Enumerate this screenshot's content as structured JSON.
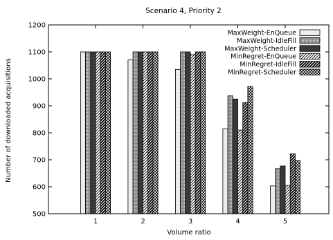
{
  "chart_data": {
    "type": "bar",
    "title": "Scenario 4, Priority 2",
    "xlabel": "Volume ratio",
    "ylabel": "Number of downloaded acquisitions",
    "categories": [
      "1",
      "2",
      "3",
      "4",
      "5"
    ],
    "ylim": [
      500,
      1200
    ],
    "yticks": [
      500,
      600,
      700,
      800,
      900,
      1000,
      1100,
      1200
    ],
    "grid": false,
    "legend_position": "top-right",
    "series": [
      {
        "name": "MaxWeight-EnQueue",
        "values": [
          1100,
          1070,
          1035,
          815,
          603
        ],
        "pattern": "light-gray"
      },
      {
        "name": "MaxWeight-IdleFill",
        "values": [
          1100,
          1100,
          1100,
          937,
          667
        ],
        "pattern": "dotted-gray"
      },
      {
        "name": "MaxWeight-Scheduler",
        "values": [
          1100,
          1100,
          1100,
          925,
          677
        ],
        "pattern": "dark-gray"
      },
      {
        "name": "MinRegret-EnQueue",
        "values": [
          1100,
          1100,
          1090,
          810,
          605
        ],
        "pattern": "hatch-fine"
      },
      {
        "name": "MinRegret-IdleFill",
        "values": [
          1100,
          1100,
          1100,
          912,
          722
        ],
        "pattern": "hatch-wide"
      },
      {
        "name": "MinRegret-Scheduler",
        "values": [
          1100,
          1100,
          1100,
          972,
          697
        ],
        "pattern": "crosshatch"
      }
    ]
  }
}
